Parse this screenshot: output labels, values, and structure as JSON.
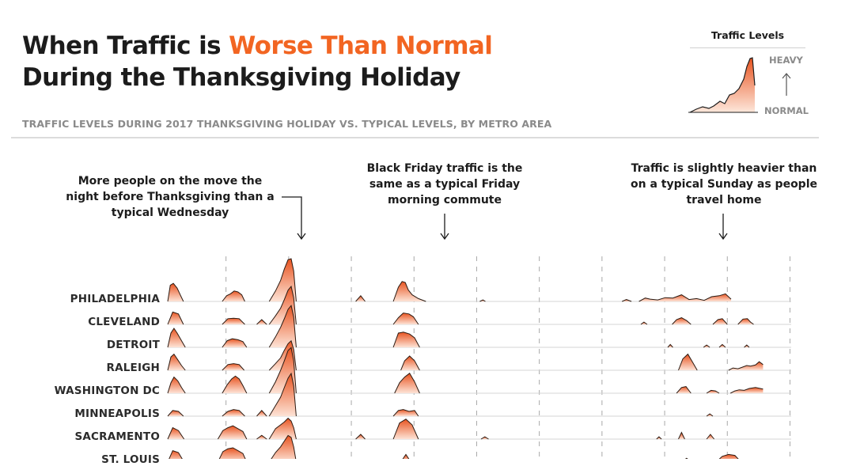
{
  "header": {
    "title_line1_pre": "When Traffic is ",
    "title_line1_highlight": "Worse Than Normal",
    "title_line2": "During the Thanksgiving Holiday",
    "subtitle": "TRAFFIC LEVELS DURING 2017 THANKSGIVING HOLIDAY VS. TYPICAL LEVELS, BY METRO AREA"
  },
  "legend": {
    "title": "Traffic Levels",
    "heavy_label": "HEAVY",
    "normal_label": "NORMAL"
  },
  "annotations": [
    {
      "lines": [
        "More people on the move the",
        "night before Thanksgiving than a",
        "typical Wednesday"
      ]
    },
    {
      "lines": [
        "Black Friday traffic is the",
        "same as a typical Friday",
        "morning commute"
      ]
    },
    {
      "lines": [
        "Traffic is slightly heavier than",
        "on a typical Sunday as people",
        "travel home"
      ]
    }
  ],
  "colors": {
    "accent": "#f26522",
    "area_top": "#e8531f",
    "area_bottom": "#fbe3d6",
    "title_text": "#1c1c1c",
    "subtitle_text": "#8a8a8a",
    "baseline": "#d4d4d4"
  },
  "chart_data": {
    "type": "area",
    "layout": "ridgeline",
    "metros": [
      "PHILADELPHIA",
      "CLEVELAND",
      "DETROIT",
      "RALEIGH",
      "WASHINGTON DC",
      "MINNEAPOLIS",
      "SACRAMENTO",
      "ST. LOUIS"
    ],
    "measure": "traffic level relative to typical (0 = normal, 1 = heavy)",
    "series": [
      {
        "name": "PHILADELPHIA",
        "segments": [
          {
            "t": [
              0,
              0.04,
              0.09,
              0.15,
              0.2,
              0.25
            ],
            "v": [
              0,
              0.85,
              0.95,
              0.7,
              0.35,
              0
            ]
          },
          {
            "t": [
              0.87,
              0.94,
              1.0,
              1.06,
              1.12,
              1.18,
              1.23
            ],
            "v": [
              0,
              0.3,
              0.4,
              0.55,
              0.5,
              0.35,
              0
            ]
          },
          {
            "t": [
              1.62,
              1.72,
              1.8,
              1.86,
              1.92,
              1.97,
              2.01,
              2.05
            ],
            "v": [
              0,
              0.55,
              1.1,
              1.7,
              2.2,
              2.25,
              1.6,
              0
            ]
          },
          {
            "t": [
              3.0,
              3.08,
              3.15
            ],
            "v": [
              0,
              0.3,
              0
            ]
          },
          {
            "t": [
              3.6,
              3.68,
              3.74,
              3.79,
              3.84,
              3.9,
              4.0,
              4.12
            ],
            "v": [
              0,
              0.75,
              1.05,
              1.0,
              0.6,
              0.35,
              0.15,
              0
            ]
          },
          {
            "t": [
              4.98,
              5.03,
              5.07
            ],
            "v": [
              0,
              0.08,
              0
            ]
          },
          {
            "t": [
              7.25,
              7.32,
              7.4
            ],
            "v": [
              0,
              0.1,
              0
            ]
          },
          {
            "t": [
              7.52,
              7.62,
              7.7,
              7.82,
              7.94,
              8.06,
              8.2,
              8.32,
              8.44,
              8.56,
              8.68,
              8.8,
              8.9,
              8.99
            ],
            "v": [
              0,
              0.18,
              0.12,
              0.08,
              0.2,
              0.18,
              0.35,
              0.1,
              0.15,
              0.06,
              0.25,
              0.3,
              0.4,
              0.12
            ]
          }
        ]
      },
      {
        "name": "CLEVELAND",
        "segments": [
          {
            "t": [
              0,
              0.08,
              0.17,
              0.25
            ],
            "v": [
              0,
              0.65,
              0.55,
              0
            ]
          },
          {
            "t": [
              0.87,
              0.96,
              1.05,
              1.14,
              1.23
            ],
            "v": [
              0,
              0.3,
              0.32,
              0.3,
              0
            ]
          },
          {
            "t": [
              1.42,
              1.5,
              1.58
            ],
            "v": [
              0,
              0.25,
              0
            ]
          },
          {
            "t": [
              1.62,
              1.72,
              1.8,
              1.86,
              1.92,
              1.97,
              2.01,
              2.05
            ],
            "v": [
              0,
              0.45,
              0.85,
              1.3,
              1.8,
              2.0,
              1.4,
              0
            ]
          },
          {
            "t": [
              3.6,
              3.68,
              3.76,
              3.85,
              3.92,
              4.0
            ],
            "v": [
              0,
              0.35,
              0.6,
              0.55,
              0.4,
              0
            ]
          },
          {
            "t": [
              7.55,
              7.6,
              7.65
            ],
            "v": [
              0,
              0.12,
              0
            ]
          },
          {
            "t": [
              8.05,
              8.12,
              8.2,
              8.28,
              8.35
            ],
            "v": [
              0,
              0.25,
              0.35,
              0.2,
              0
            ]
          },
          {
            "t": [
              8.7,
              8.78,
              8.85,
              8.93
            ],
            "v": [
              0,
              0.25,
              0.3,
              0
            ]
          },
          {
            "t": [
              9.1,
              9.18,
              9.25,
              9.3,
              9.35
            ],
            "v": [
              0,
              0.28,
              0.3,
              0.12,
              0
            ]
          }
        ]
      },
      {
        "name": "DETROIT",
        "segments": [
          {
            "t": [
              0,
              0.05,
              0.1,
              0.15,
              0.22,
              0.28
            ],
            "v": [
              0,
              0.75,
              1.0,
              0.75,
              0.35,
              0
            ]
          },
          {
            "t": [
              0.87,
              0.95,
              1.03,
              1.12,
              1.2,
              1.26
            ],
            "v": [
              0,
              0.35,
              0.45,
              0.4,
              0.3,
              0
            ]
          },
          {
            "t": [
              1.62,
              1.72,
              1.8,
              1.86,
              1.92,
              1.97,
              2.01,
              2.05
            ],
            "v": [
              0,
              0.55,
              1.05,
              1.5,
              2.0,
              2.2,
              1.6,
              0
            ]
          },
          {
            "t": [
              3.6,
              3.68,
              3.76,
              3.86,
              3.94,
              4.02
            ],
            "v": [
              0,
              0.75,
              0.8,
              0.7,
              0.5,
              0
            ]
          },
          {
            "t": [
              7.98,
              8.02,
              8.06
            ],
            "v": [
              0,
              0.15,
              0
            ]
          },
          {
            "t": [
              8.55,
              8.6,
              8.65
            ],
            "v": [
              0,
              0.12,
              0
            ]
          },
          {
            "t": [
              8.8,
              8.85,
              8.9
            ],
            "v": [
              0,
              0.15,
              0
            ]
          },
          {
            "t": [
              9.2,
              9.24,
              9.28
            ],
            "v": [
              0,
              0.12,
              0
            ]
          }
        ]
      },
      {
        "name": "RALEIGH",
        "segments": [
          {
            "t": [
              0,
              0.05,
              0.1,
              0.16,
              0.22,
              0.28
            ],
            "v": [
              0,
              0.7,
              0.85,
              0.55,
              0.25,
              0
            ]
          },
          {
            "t": [
              0.87,
              0.96,
              1.05,
              1.14,
              1.22
            ],
            "v": [
              0,
              0.3,
              0.35,
              0.3,
              0
            ]
          },
          {
            "t": [
              1.62,
              1.72,
              1.8,
              1.86,
              1.92,
              1.97,
              2.01,
              2.05
            ],
            "v": [
              0,
              0.35,
              0.65,
              1.05,
              1.4,
              1.55,
              1.1,
              0
            ]
          },
          {
            "t": [
              3.72,
              3.78,
              3.86,
              3.94,
              4.02
            ],
            "v": [
              0,
              0.5,
              0.75,
              0.5,
              0
            ]
          },
          {
            "t": [
              8.15,
              8.22,
              8.3,
              8.38,
              8.45
            ],
            "v": [
              0,
              0.6,
              0.85,
              0.4,
              0
            ]
          },
          {
            "t": [
              8.95,
              9.02,
              9.1,
              9.16,
              9.24,
              9.3,
              9.38,
              9.44,
              9.5
            ],
            "v": [
              0,
              0.12,
              0.08,
              0.15,
              0.25,
              0.22,
              0.28,
              0.45,
              0.3
            ]
          }
        ]
      },
      {
        "name": "WASHINGTON DC",
        "segments": [
          {
            "t": [
              0,
              0.05,
              0.1,
              0.16,
              0.22,
              0.28
            ],
            "v": [
              0,
              0.55,
              0.85,
              0.65,
              0.3,
              0
            ]
          },
          {
            "t": [
              0.87,
              0.95,
              1.02,
              1.08,
              1.14,
              1.2,
              1.26
            ],
            "v": [
              0,
              0.45,
              0.75,
              0.9,
              0.75,
              0.4,
              0
            ]
          },
          {
            "t": [
              1.62,
              1.72,
              1.8,
              1.86,
              1.92,
              1.97,
              2.01,
              2.05
            ],
            "v": [
              0,
              0.6,
              1.2,
              1.7,
              2.25,
              2.4,
              1.7,
              0
            ]
          },
          {
            "t": [
              3.62,
              3.7,
              3.78,
              3.86,
              3.94,
              4.02
            ],
            "v": [
              0,
              0.55,
              0.85,
              1.05,
              0.6,
              0
            ]
          },
          {
            "t": [
              8.12,
              8.2,
              8.27,
              8.35
            ],
            "v": [
              0,
              0.3,
              0.35,
              0
            ]
          },
          {
            "t": [
              8.6,
              8.67,
              8.74,
              8.8
            ],
            "v": [
              0,
              0.15,
              0.12,
              0
            ]
          },
          {
            "t": [
              8.98,
              9.05,
              9.12,
              9.2,
              9.28,
              9.38,
              9.5
            ],
            "v": [
              0,
              0.12,
              0.18,
              0.15,
              0.25,
              0.3,
              0.22
            ]
          }
        ]
      },
      {
        "name": "MINNEAPOLIS",
        "segments": [
          {
            "t": [
              0,
              0.08,
              0.17,
              0.25
            ],
            "v": [
              0,
              0.3,
              0.25,
              0
            ]
          },
          {
            "t": [
              0.87,
              0.96,
              1.05,
              1.14,
              1.23
            ],
            "v": [
              0,
              0.25,
              0.35,
              0.3,
              0
            ]
          },
          {
            "t": [
              1.42,
              1.5,
              1.58
            ],
            "v": [
              0,
              0.3,
              0
            ]
          },
          {
            "t": [
              1.62,
              1.72,
              1.8,
              1.86,
              1.92,
              1.97,
              2.01,
              2.05
            ],
            "v": [
              0,
              0.55,
              1.0,
              1.5,
              2.0,
              2.25,
              1.6,
              0
            ]
          },
          {
            "t": [
              3.6,
              3.68,
              3.76,
              3.85,
              3.94,
              4.0
            ],
            "v": [
              0,
              0.3,
              0.35,
              0.25,
              0.3,
              0
            ]
          },
          {
            "t": [
              8.6,
              8.65,
              8.7
            ],
            "v": [
              0,
              0.12,
              0
            ]
          }
        ]
      },
      {
        "name": "SACRAMENTO",
        "segments": [
          {
            "t": [
              0,
              0.08,
              0.17,
              0.26
            ],
            "v": [
              0,
              0.6,
              0.45,
              0
            ]
          },
          {
            "t": [
              0.8,
              0.88,
              0.96,
              1.04,
              1.12,
              1.2,
              1.26
            ],
            "v": [
              0,
              0.45,
              0.6,
              0.7,
              0.55,
              0.4,
              0
            ]
          },
          {
            "t": [
              1.42,
              1.5,
              1.58
            ],
            "v": [
              0,
              0.2,
              0
            ]
          },
          {
            "t": [
              1.62,
              1.72,
              1.8,
              1.86,
              1.92,
              1.97,
              2.01,
              2.05
            ],
            "v": [
              0,
              0.55,
              0.75,
              0.9,
              1.1,
              0.95,
              0.6,
              0
            ]
          },
          {
            "t": [
              3.0,
              3.08,
              3.15
            ],
            "v": [
              0,
              0.25,
              0
            ]
          },
          {
            "t": [
              3.6,
              3.7,
              3.8,
              3.9,
              4.0
            ],
            "v": [
              0,
              0.85,
              1.05,
              0.75,
              0
            ]
          },
          {
            "t": [
              5.0,
              5.06,
              5.12
            ],
            "v": [
              0,
              0.12,
              0
            ]
          },
          {
            "t": [
              7.8,
              7.84,
              7.88
            ],
            "v": [
              0,
              0.12,
              0
            ]
          },
          {
            "t": [
              8.15,
              8.2,
              8.25
            ],
            "v": [
              0,
              0.35,
              0
            ]
          },
          {
            "t": [
              8.6,
              8.66,
              8.72
            ],
            "v": [
              0,
              0.25,
              0
            ]
          }
        ]
      },
      {
        "name": "ST. LOUIS",
        "segments": [
          {
            "t": [
              0,
              0.08,
              0.17,
              0.26
            ],
            "v": [
              0,
              0.6,
              0.5,
              0
            ]
          },
          {
            "t": [
              0.8,
              0.88,
              0.96,
              1.04,
              1.12,
              1.2,
              1.26
            ],
            "v": [
              0,
              0.55,
              0.7,
              0.75,
              0.6,
              0.45,
              0
            ]
          },
          {
            "t": [
              1.62,
              1.72,
              1.8,
              1.86,
              1.92,
              1.97,
              2.01,
              2.05
            ],
            "v": [
              0,
              0.5,
              0.8,
              1.1,
              1.4,
              1.3,
              0.8,
              0
            ]
          },
          {
            "t": [
              3.72,
              3.8,
              3.88
            ],
            "v": [
              0,
              0.4,
              0
            ]
          },
          {
            "t": [
              8.2,
              8.28,
              8.36
            ],
            "v": [
              0,
              0.2,
              0
            ]
          },
          {
            "t": [
              8.75,
              8.85,
              8.95,
              9.05,
              9.15
            ],
            "v": [
              0,
              0.3,
              0.4,
              0.35,
              0
            ]
          }
        ]
      }
    ]
  }
}
